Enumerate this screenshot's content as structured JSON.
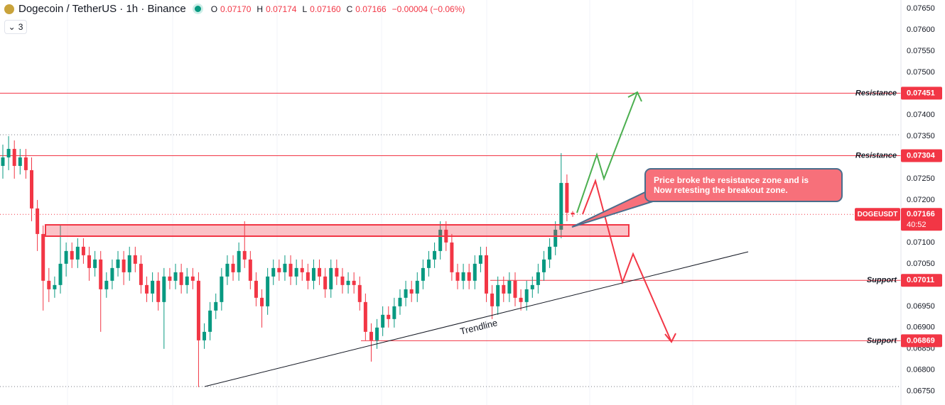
{
  "chart_data": {
    "type": "candlestick",
    "title": "Dogecoin / TetherUS · 1h · Binance",
    "legend_ohlc": [
      {
        "label": "O",
        "value": "0.07170"
      },
      {
        "label": "H",
        "value": "0.07174"
      },
      {
        "label": "L",
        "value": "0.07160"
      },
      {
        "label": "C",
        "value": "0.07166"
      }
    ],
    "change": "−0.00004 (−0.06%)",
    "indicator_count": 3,
    "up_color": "#089981",
    "down_color": "#f23645",
    "open": [
      0.0728,
      0.073,
      0.0732,
      0.0728,
      0.073,
      0.0727,
      0.0718,
      0.0712,
      0.0701,
      0.0699,
      0.07,
      0.0705,
      0.0708,
      0.0706,
      0.0709,
      0.0707,
      0.0704,
      0.0706,
      0.0699,
      0.0701,
      0.0704,
      0.0706,
      0.0703,
      0.0707,
      0.0705,
      0.07,
      0.0698,
      0.0701,
      0.0696,
      0.0702,
      0.0701,
      0.0703,
      0.07,
      0.0702,
      0.0701,
      0.0687,
      0.0689,
      0.0694,
      0.0696,
      0.0702,
      0.0705,
      0.0703,
      0.0708,
      0.0706,
      0.0701,
      0.0697,
      0.0695,
      0.0702,
      0.0704,
      0.0703,
      0.0705,
      0.0702,
      0.0704,
      0.0703,
      0.0701,
      0.0704,
      0.0702,
      0.0699,
      0.0704,
      0.0702,
      0.07,
      0.0701,
      0.07,
      0.0696,
      0.0689,
      0.0687,
      0.069,
      0.0693,
      0.0692,
      0.0695,
      0.0697,
      0.0699,
      0.0698,
      0.0701,
      0.0704,
      0.0706,
      0.0708,
      0.0713,
      0.071,
      0.0703,
      0.0701,
      0.0703,
      0.0701,
      0.0705,
      0.0707,
      0.0698,
      0.0695,
      0.07,
      0.0698,
      0.0701,
      0.0697,
      0.0696,
      0.0699,
      0.07,
      0.0703,
      0.0706,
      0.0709,
      0.0713,
      0.0724,
      0.0717
    ],
    "high": [
      0.0733,
      0.0735,
      0.0734,
      0.0732,
      0.0732,
      0.073,
      0.072,
      0.0714,
      0.0704,
      0.0702,
      0.0714,
      0.071,
      0.071,
      0.0711,
      0.0711,
      0.0709,
      0.0708,
      0.0708,
      0.0703,
      0.0706,
      0.0708,
      0.0708,
      0.0709,
      0.0709,
      0.0707,
      0.0702,
      0.0703,
      0.0703,
      0.0704,
      0.0704,
      0.0705,
      0.0705,
      0.0704,
      0.0704,
      0.0703,
      0.0691,
      0.0696,
      0.0698,
      0.0704,
      0.0707,
      0.0707,
      0.071,
      0.0715,
      0.0708,
      0.0703,
      0.0699,
      0.0704,
      0.0706,
      0.0706,
      0.0707,
      0.0707,
      0.0706,
      0.0706,
      0.0705,
      0.0706,
      0.0706,
      0.0704,
      0.0706,
      0.0706,
      0.0704,
      0.0703,
      0.0703,
      0.0702,
      0.0698,
      0.0691,
      0.0692,
      0.0695,
      0.0695,
      0.0697,
      0.0699,
      0.0701,
      0.0701,
      0.0703,
      0.0706,
      0.0708,
      0.071,
      0.0715,
      0.0715,
      0.0712,
      0.0705,
      0.0705,
      0.0705,
      0.0707,
      0.0709,
      0.0709,
      0.07,
      0.0702,
      0.0702,
      0.0703,
      0.0703,
      0.0699,
      0.0701,
      0.0702,
      0.0705,
      0.0708,
      0.0711,
      0.0715,
      0.0731,
      0.0726,
      0.07174
    ],
    "low": [
      0.0725,
      0.0727,
      0.0725,
      0.0726,
      0.0725,
      0.0715,
      0.0708,
      0.0694,
      0.0696,
      0.0697,
      0.0698,
      0.0702,
      0.0704,
      0.0704,
      0.0705,
      0.0701,
      0.0702,
      0.0689,
      0.0697,
      0.0699,
      0.0702,
      0.07,
      0.0701,
      0.0703,
      0.0698,
      0.0696,
      0.0696,
      0.0694,
      0.0685,
      0.0699,
      0.0699,
      0.0698,
      0.0698,
      0.0699,
      0.0676,
      0.0685,
      0.0687,
      0.0692,
      0.0694,
      0.07,
      0.0701,
      0.0701,
      0.0704,
      0.0699,
      0.0695,
      0.069,
      0.0693,
      0.07,
      0.0701,
      0.0701,
      0.07,
      0.07,
      0.0701,
      0.0699,
      0.0699,
      0.07,
      0.0697,
      0.0697,
      0.07,
      0.0698,
      0.0698,
      0.0698,
      0.0694,
      0.0687,
      0.0682,
      0.0685,
      0.0688,
      0.069,
      0.069,
      0.0693,
      0.0695,
      0.0696,
      0.0696,
      0.0699,
      0.0702,
      0.0704,
      0.0706,
      0.0708,
      0.0701,
      0.0699,
      0.0699,
      0.0699,
      0.0699,
      0.0703,
      0.0696,
      0.0692,
      0.0693,
      0.0696,
      0.0696,
      0.0695,
      0.0694,
      0.0694,
      0.0697,
      0.0698,
      0.0701,
      0.0704,
      0.0707,
      0.0711,
      0.0715,
      0.0716
    ],
    "close": [
      0.073,
      0.0732,
      0.0728,
      0.073,
      0.0727,
      0.0718,
      0.0712,
      0.0701,
      0.0699,
      0.07,
      0.0705,
      0.0708,
      0.0706,
      0.0709,
      0.0707,
      0.0704,
      0.0706,
      0.0699,
      0.0701,
      0.0704,
      0.0706,
      0.0703,
      0.0707,
      0.0705,
      0.07,
      0.0698,
      0.0701,
      0.0696,
      0.0702,
      0.0701,
      0.0703,
      0.07,
      0.0702,
      0.0701,
      0.0687,
      0.0689,
      0.0694,
      0.0696,
      0.0702,
      0.0705,
      0.0703,
      0.0708,
      0.0706,
      0.0701,
      0.0697,
      0.0695,
      0.0702,
      0.0704,
      0.0703,
      0.0705,
      0.0702,
      0.0704,
      0.0703,
      0.0701,
      0.0704,
      0.0702,
      0.0699,
      0.0704,
      0.0702,
      0.07,
      0.0701,
      0.07,
      0.0696,
      0.0689,
      0.0687,
      0.069,
      0.0693,
      0.0692,
      0.0695,
      0.0697,
      0.0699,
      0.0698,
      0.0701,
      0.0704,
      0.0706,
      0.0708,
      0.0713,
      0.071,
      0.0703,
      0.0701,
      0.0703,
      0.0701,
      0.0705,
      0.0707,
      0.0698,
      0.0695,
      0.07,
      0.0698,
      0.0701,
      0.0697,
      0.0696,
      0.0699,
      0.07,
      0.0703,
      0.0706,
      0.0709,
      0.0713,
      0.0724,
      0.0717,
      0.07166
    ],
    "ylim": [
      0.06718,
      0.0767
    ],
    "yticks": [
      {
        "value": 0.0765,
        "label": "0.07650"
      },
      {
        "value": 0.076,
        "label": "0.07600"
      },
      {
        "value": 0.0755,
        "label": "0.07550"
      },
      {
        "value": 0.075,
        "label": "0.07500"
      },
      {
        "value": 0.074,
        "label": "0.07400"
      },
      {
        "value": 0.0735,
        "label": "0.07350"
      },
      {
        "value": 0.0725,
        "label": "0.07250"
      },
      {
        "value": 0.072,
        "label": "0.07200"
      },
      {
        "value": 0.071,
        "label": "0.07100"
      },
      {
        "value": 0.0705,
        "label": "0.07050"
      },
      {
        "value": 0.0695,
        "label": "0.06950"
      },
      {
        "value": 0.069,
        "label": "0.06900"
      },
      {
        "value": 0.0685,
        "label": "0.06850"
      },
      {
        "value": 0.068,
        "label": "0.06800"
      },
      {
        "value": 0.0675,
        "label": "0.06750"
      }
    ],
    "levels": [
      {
        "label": "Resistance",
        "value": 0.07451
      },
      {
        "label": "Resistance",
        "value": 0.07304
      },
      {
        "label": "Support",
        "value": 0.07011
      },
      {
        "label": "Support",
        "value": 0.06869
      }
    ],
    "level_color": "#f23645",
    "current": {
      "symbol": "DOGEUSDT",
      "value": 0.07166,
      "countdown": "40:52"
    },
    "callout": [
      "Price broke the resistance zone and is",
      "Now retesting the breakout zone."
    ],
    "trendline_label": "Trendline"
  }
}
